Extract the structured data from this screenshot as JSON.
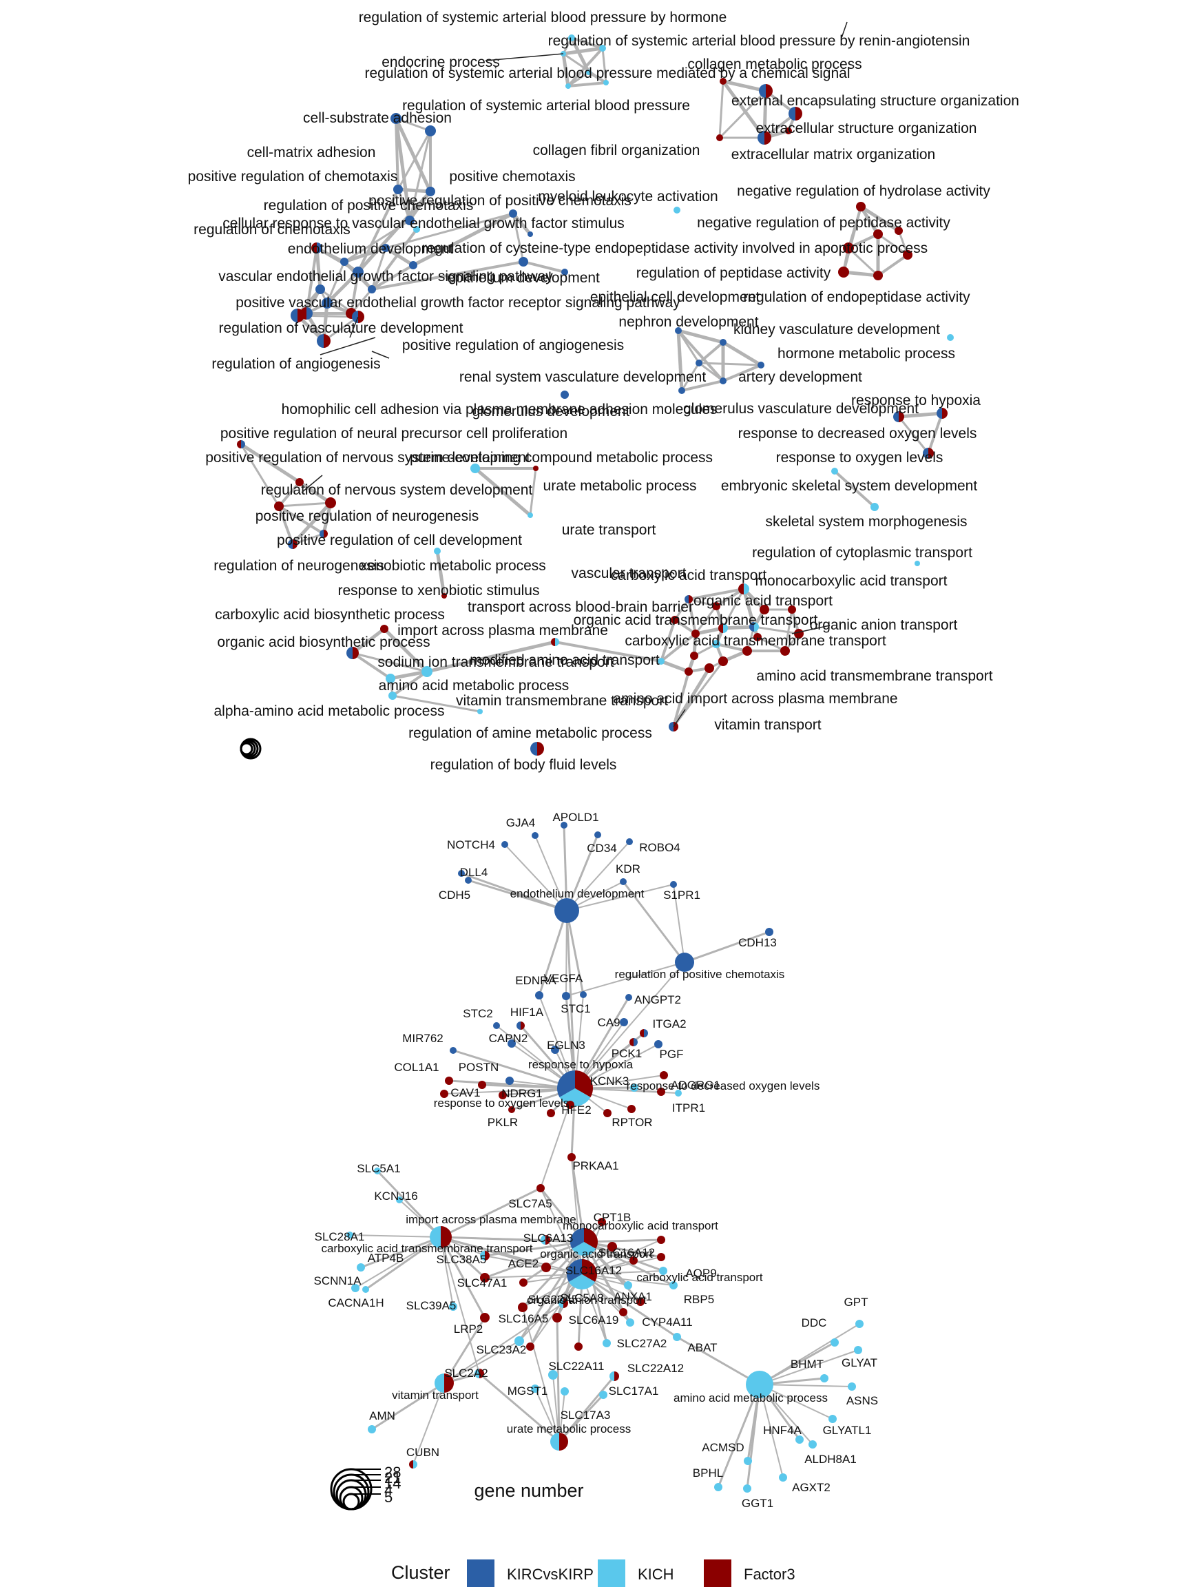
{
  "colors": {
    "KIRCvsKIRP": "#2b5fa6",
    "KICH": "#5ac8ec",
    "Factor3": "#8b0000",
    "edge": "#b3b3b3"
  },
  "legend": {
    "title": "Cluster",
    "items": [
      {
        "label": "KIRCvsKIRP",
        "color": "#2b5fa6"
      },
      {
        "label": "KICH",
        "color": "#5ac8ec"
      },
      {
        "label": "Factor3",
        "color": "#8b0000"
      }
    ],
    "size_title": "gene number",
    "size_values": [
      "28",
      "21",
      "14",
      "4",
      "5"
    ]
  },
  "top_labels": [
    "regulation of systemic arterial blood pressure by hormone",
    "regulation of systemic arterial blood pressure by renin-angiotensin",
    "endocrine process",
    "collagen metabolic process",
    "regulation of systemic arterial blood pressure mediated by a chemical signal",
    "external encapsulating structure organization",
    "regulation of systemic arterial blood pressure",
    "cell-substrate adhesion",
    "extracellular structure organization",
    "collagen fibril organization",
    "extracellular matrix organization",
    "cell-matrix adhesion",
    "positive regulation of chemotaxis",
    "positive chemotaxis",
    "myeloid leukocyte activation",
    "negative regulation of hydrolase activity",
    "regulation of positive chemotaxis",
    "positive regulation of positive chemotaxis",
    "cellular response to vascular endothelial growth factor stimulus",
    "negative regulation of peptidase activity",
    "regulation of chemotaxis",
    "endothelium development",
    "regulation of cysteine-type endopeptidase activity involved in apoptotic process",
    "vascular endothelial growth factor signaling pathway",
    "epithelium development",
    "regulation of peptidase activity",
    "epithelial cell development",
    "regulation of endopeptidase activity",
    "positive vascular endothelial growth factor receptor signaling pathway",
    "nephron development",
    "regulation of vasculature development",
    "kidney vasculature development",
    "positive regulation of angiogenesis",
    "hormone metabolic process",
    "regulation of angiogenesis",
    "renal system vasculature development",
    "artery development",
    "response to hypoxia",
    "homophilic cell adhesion via plasma membrane adhesion molecules",
    "glomerulus development",
    "glomerulus vasculature development",
    "response to decreased oxygen levels",
    "positive regulation of neural precursor cell proliferation",
    "positive regulation of nervous system development",
    "purine-containing compound metabolic process",
    "response to oxygen levels",
    "regulation of nervous system development",
    "urate metabolic process",
    "embryonic skeletal system development",
    "positive regulation of neurogenesis",
    "skeletal system morphogenesis",
    "positive regulation of cell development",
    "urate transport",
    "regulation of cytoplasmic transport",
    "regulation of neurogenesis",
    "xenobiotic metabolic process",
    "vascular transport",
    "carboxylic acid transport",
    "monocarboxylic acid transport",
    "response to xenobiotic stimulus",
    "organic acid transport",
    "carboxylic acid biosynthetic process",
    "transport across blood-brain barrier",
    "organic acid transmembrane transport",
    "organic anion transport",
    "organic acid biosynthetic process",
    "import across plasma membrane",
    "carboxylic acid transmembrane transport",
    "modified amino acid transport",
    "sodium ion transmembrane transport",
    "amino acid transmembrane transport",
    "amino acid metabolic process",
    "vitamin transmembrane transport",
    "amino acid import across plasma membrane",
    "alpha-amino acid metabolic process",
    "vitamin transport",
    "regulation of amine metabolic process",
    "regulation of body fluid levels"
  ],
  "bottom_labels": [
    "GJA4",
    "APOLD1",
    "NOTCH4",
    "CD34",
    "ROBO4",
    "DLL4",
    "KDR",
    "CDH5",
    "endothelium development",
    "S1PR1",
    "CDH13",
    "regulation of positive chemotaxis",
    "EDNRA",
    "VEGFA",
    "STC1",
    "ANGPT2",
    "STC2",
    "HIF1A",
    "CA9",
    "ITGA2",
    "CAPN2",
    "MIR762",
    "EGLN3",
    "PCK1",
    "PGF",
    "COL1A1",
    "POSTN",
    "response to hypoxia",
    "KCNK3",
    "CAV1",
    "NDRG1",
    "ADGRG1",
    "response to decreased oxygen levels",
    "response to oxygen levels",
    "HFE2",
    "ITPR1",
    "PKLR",
    "RPTOR",
    "PRKAA1",
    "SLC5A1",
    "KCNJ16",
    "SLC7A5",
    "CPT1B",
    "import across plasma membrane",
    "monocarboxylic acid transport",
    "SLC28A1",
    "SLC6A13",
    "SLC16A12",
    "carboxylic acid transmembrane transport",
    "organic acid transport",
    "ATP4B",
    "SLC38A5",
    "ACE2",
    "SLC16A12",
    "AQP9",
    "carboxylic acid transport",
    "SCNN1A",
    "SLC47A1",
    "ANXA1",
    "RBP5",
    "organic anion transport",
    "CACNA1H",
    "SLC39A5",
    "SLC22A5",
    "SLC5A8",
    "LRP2",
    "SLC16A5",
    "SLC6A19",
    "CYP4A11",
    "SLC23A2",
    "SLC27A2",
    "ABAT",
    "GPT",
    "DDC",
    "GLYAT",
    "SLC2A2",
    "SLC22A11",
    "SLC22A12",
    "BHMT",
    "vitamin transport",
    "MGST1",
    "SLC17A1",
    "amino acid metabolic process",
    "ASNS",
    "AMN",
    "SLC17A3",
    "HNF4A",
    "GLYATL1",
    "urate metabolic process",
    "ACMSD",
    "ALDH8A1",
    "CUBN",
    "BPHL",
    "AGXT2",
    "GGT1"
  ]
}
